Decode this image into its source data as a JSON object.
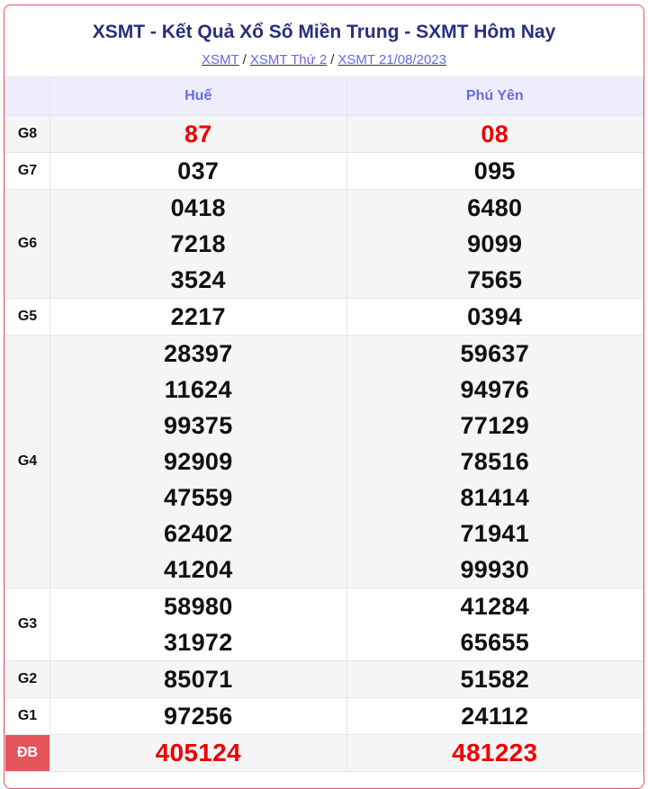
{
  "title": "XSMT - Kết Quả Xổ Số Miền Trung - SXMT Hôm Nay",
  "breadcrumb": [
    "XSMT",
    "XSMT Thứ 2",
    "XSMT 21/08/2023"
  ],
  "breadcrumb_separator": "/",
  "provinces": [
    "Huế",
    "Phú Yên"
  ],
  "prizes": [
    {
      "label": "G8",
      "highlight": true,
      "values": [
        [
          "87"
        ],
        [
          "08"
        ]
      ]
    },
    {
      "label": "G7",
      "values": [
        [
          "037"
        ],
        [
          "095"
        ]
      ]
    },
    {
      "label": "G6",
      "values": [
        [
          "0418",
          "7218",
          "3524"
        ],
        [
          "6480",
          "9099",
          "7565"
        ]
      ]
    },
    {
      "label": "G5",
      "values": [
        [
          "2217"
        ],
        [
          "0394"
        ]
      ]
    },
    {
      "label": "G4",
      "values": [
        [
          "28397",
          "11624",
          "99375",
          "92909",
          "47559",
          "62402",
          "41204"
        ],
        [
          "59637",
          "94976",
          "77129",
          "78516",
          "81414",
          "71941",
          "99930"
        ]
      ]
    },
    {
      "label": "G3",
      "values": [
        [
          "58980",
          "31972"
        ],
        [
          "41284",
          "65655"
        ]
      ]
    },
    {
      "label": "G2",
      "values": [
        [
          "85071"
        ],
        [
          "51582"
        ]
      ]
    },
    {
      "label": "G1",
      "values": [
        [
          "97256"
        ],
        [
          "24112"
        ]
      ]
    },
    {
      "label": "ĐB",
      "highlight": true,
      "special": true,
      "values": [
        [
          "405124"
        ],
        [
          "481223"
        ]
      ]
    }
  ],
  "colors": {
    "title": "#2b2f7a",
    "header_text": "#6a6ae8",
    "highlight": "#ee0000",
    "special_label_bg": "#e4545b",
    "border": "#e8535a"
  }
}
